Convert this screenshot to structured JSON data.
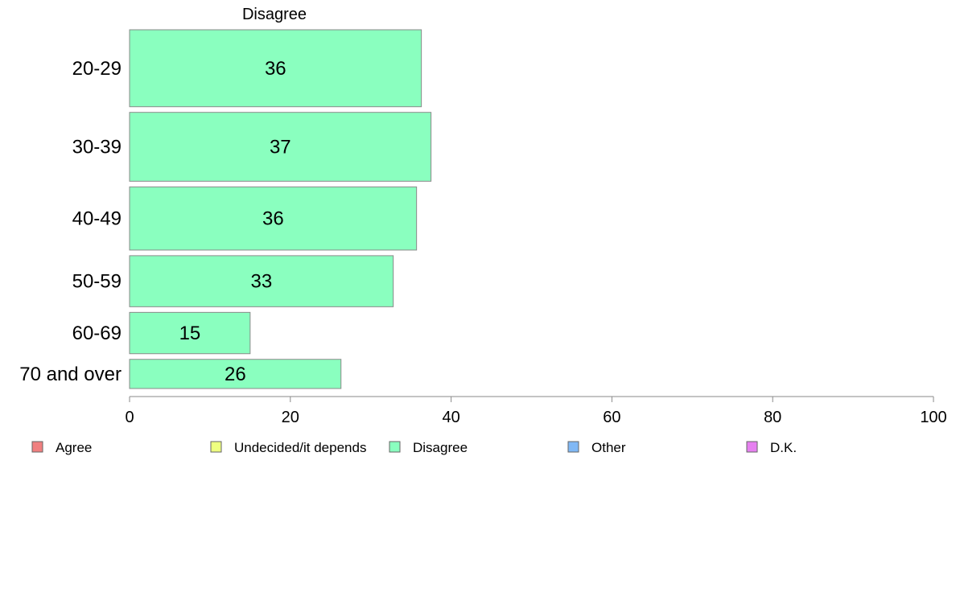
{
  "chart_data": {
    "type": "bar",
    "orientation": "horizontal",
    "panel_title": "Disagree",
    "categories": [
      "20-29",
      "30-39",
      "40-49",
      "50-59",
      "60-69",
      "70 and over"
    ],
    "values": [
      36,
      37,
      36,
      33,
      15,
      26
    ],
    "value_labels": [
      "36",
      "37",
      "36",
      "33",
      "15",
      "26"
    ],
    "bar_values": [
      36.3,
      37.5,
      35.7,
      32.8,
      15.0,
      26.3
    ],
    "bar_weights": [
      95,
      85,
      78,
      63,
      51,
      36
    ],
    "xlim": [
      0,
      100
    ],
    "xticks": [
      "0",
      "20",
      "40",
      "60",
      "80",
      "100"
    ],
    "bar_color": "#8AFFBF",
    "legend_position": "bottom",
    "legend": [
      {
        "label": "Agree",
        "color": "#F08080"
      },
      {
        "label": "Undecided/it depends",
        "color": "#EEFF80"
      },
      {
        "label": "Disagree",
        "color": "#8AFFBF"
      },
      {
        "label": "Other",
        "color": "#80B8F5"
      },
      {
        "label": "D.K.",
        "color": "#E680F0"
      }
    ]
  }
}
